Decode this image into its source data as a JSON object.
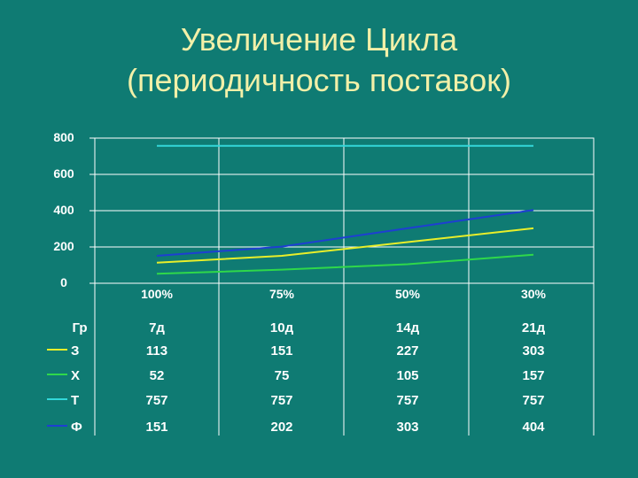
{
  "colors": {
    "background": "#0F7B73",
    "title": "#F2F0A8",
    "text": "#FFFFFF",
    "grid": "#FFFFFF"
  },
  "chart_data": {
    "type": "line",
    "title_line1": "Увеличение Цикла",
    "title_line2": "(периодичность поставок)",
    "categories": [
      "100%",
      "75%",
      "50%",
      "30%"
    ],
    "ylim": [
      0,
      800
    ],
    "yticks": [
      0,
      200,
      400,
      600,
      800
    ],
    "grid": true,
    "table": {
      "header_label": "Гр",
      "header_values": [
        "7д",
        "10д",
        "14д",
        "21д"
      ]
    },
    "series": [
      {
        "name": "З",
        "color": "#E8EE2A",
        "values": [
          113,
          151,
          227,
          303
        ]
      },
      {
        "name": "Х",
        "color": "#2FD84A",
        "values": [
          52,
          75,
          105,
          157
        ]
      },
      {
        "name": "Т",
        "color": "#33D7D9",
        "values": [
          757,
          757,
          757,
          757
        ]
      },
      {
        "name": "Ф",
        "color": "#1E3FD2",
        "values": [
          151,
          202,
          303,
          404
        ]
      }
    ]
  }
}
